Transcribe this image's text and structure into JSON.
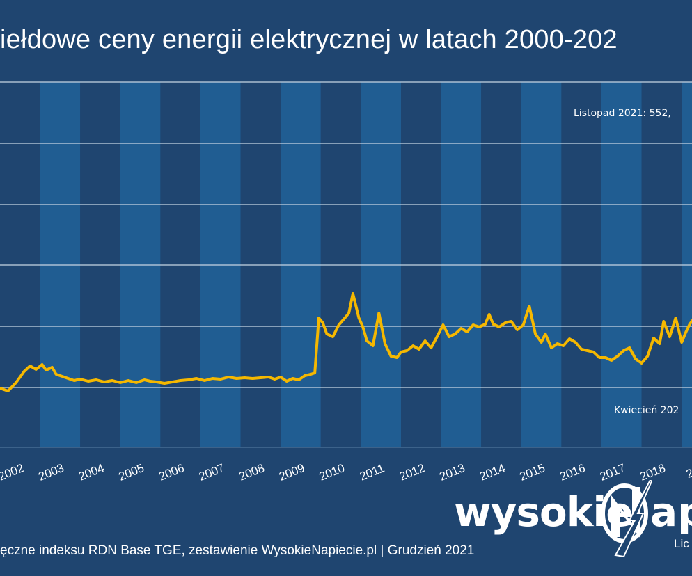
{
  "chart_data": {
    "type": "line",
    "title": "iełdowe ceny energii elektrycznej w latach 2000-202",
    "xlabel": "",
    "ylabel": "",
    "x_tick_labels": [
      "2002",
      "2003",
      "2004",
      "2005",
      "2006",
      "2007",
      "2008",
      "2009",
      "2010",
      "2011",
      "2012",
      "2013",
      "2014",
      "2015",
      "2016",
      "2017",
      "2018",
      "20"
    ],
    "grid": true,
    "line_color": "#f5b800",
    "annotations": {
      "max_label": "Listopad 2021: 552,",
      "min_label": "Kwiecień 202"
    },
    "series": [
      {
        "values": [
          [
            2001.0,
            0.04
          ],
          [
            2001.2,
            0.0
          ],
          [
            2001.4,
            0.12
          ],
          [
            2001.6,
            0.28
          ],
          [
            2001.75,
            0.36
          ],
          [
            2001.9,
            0.31
          ],
          [
            2002.05,
            0.38
          ],
          [
            2002.15,
            0.3
          ],
          [
            2002.3,
            0.34
          ],
          [
            2002.4,
            0.24
          ],
          [
            2002.55,
            0.21
          ],
          [
            2002.7,
            0.18
          ],
          [
            2002.85,
            0.15
          ],
          [
            2003.0,
            0.17
          ],
          [
            2003.2,
            0.14
          ],
          [
            2003.4,
            0.16
          ],
          [
            2003.6,
            0.13
          ],
          [
            2003.8,
            0.15
          ],
          [
            2004.0,
            0.12
          ],
          [
            2004.2,
            0.15
          ],
          [
            2004.4,
            0.12
          ],
          [
            2004.6,
            0.16
          ],
          [
            2004.75,
            0.14
          ],
          [
            2004.9,
            0.13
          ],
          [
            2005.1,
            0.11
          ],
          [
            2005.3,
            0.13
          ],
          [
            2005.5,
            0.15
          ],
          [
            2005.7,
            0.16
          ],
          [
            2005.9,
            0.18
          ],
          [
            2006.1,
            0.15
          ],
          [
            2006.3,
            0.18
          ],
          [
            2006.5,
            0.17
          ],
          [
            2006.7,
            0.2
          ],
          [
            2006.9,
            0.18
          ],
          [
            2007.1,
            0.19
          ],
          [
            2007.3,
            0.18
          ],
          [
            2007.5,
            0.19
          ],
          [
            2007.7,
            0.2
          ],
          [
            2007.85,
            0.17
          ],
          [
            2008.0,
            0.2
          ],
          [
            2008.15,
            0.14
          ],
          [
            2008.3,
            0.18
          ],
          [
            2008.45,
            0.16
          ],
          [
            2008.6,
            0.22
          ],
          [
            2008.75,
            0.24
          ],
          [
            2008.85,
            0.26
          ],
          [
            2008.95,
            1.05
          ],
          [
            2009.05,
            0.98
          ],
          [
            2009.15,
            0.82
          ],
          [
            2009.3,
            0.78
          ],
          [
            2009.45,
            0.95
          ],
          [
            2009.6,
            1.05
          ],
          [
            2009.7,
            1.12
          ],
          [
            2009.8,
            1.4
          ],
          [
            2009.95,
            1.05
          ],
          [
            2010.05,
            0.92
          ],
          [
            2010.15,
            0.72
          ],
          [
            2010.3,
            0.65
          ],
          [
            2010.45,
            1.12
          ],
          [
            2010.6,
            0.68
          ],
          [
            2010.75,
            0.5
          ],
          [
            2010.9,
            0.48
          ],
          [
            2011.0,
            0.56
          ],
          [
            2011.15,
            0.58
          ],
          [
            2011.3,
            0.65
          ],
          [
            2011.45,
            0.6
          ],
          [
            2011.6,
            0.72
          ],
          [
            2011.75,
            0.62
          ],
          [
            2011.9,
            0.78
          ],
          [
            2012.05,
            0.95
          ],
          [
            2012.2,
            0.78
          ],
          [
            2012.35,
            0.82
          ],
          [
            2012.5,
            0.9
          ],
          [
            2012.65,
            0.85
          ],
          [
            2012.8,
            0.95
          ],
          [
            2012.95,
            0.92
          ],
          [
            2013.1,
            0.96
          ],
          [
            2013.2,
            1.1
          ],
          [
            2013.3,
            0.96
          ],
          [
            2013.45,
            0.92
          ],
          [
            2013.6,
            0.98
          ],
          [
            2013.75,
            1.0
          ],
          [
            2013.9,
            0.88
          ],
          [
            2014.05,
            0.95
          ],
          [
            2014.2,
            1.22
          ],
          [
            2014.35,
            0.82
          ],
          [
            2014.5,
            0.7
          ],
          [
            2014.6,
            0.82
          ],
          [
            2014.75,
            0.62
          ],
          [
            2014.9,
            0.68
          ],
          [
            2015.05,
            0.65
          ],
          [
            2015.2,
            0.75
          ],
          [
            2015.35,
            0.7
          ],
          [
            2015.5,
            0.6
          ],
          [
            2015.65,
            0.58
          ],
          [
            2015.8,
            0.56
          ],
          [
            2015.95,
            0.48
          ],
          [
            2016.1,
            0.48
          ],
          [
            2016.25,
            0.44
          ],
          [
            2016.4,
            0.5
          ],
          [
            2016.55,
            0.58
          ],
          [
            2016.7,
            0.62
          ],
          [
            2016.85,
            0.46
          ],
          [
            2017.0,
            0.4
          ],
          [
            2017.15,
            0.5
          ],
          [
            2017.3,
            0.76
          ],
          [
            2017.45,
            0.68
          ],
          [
            2017.55,
            1.0
          ],
          [
            2017.7,
            0.78
          ],
          [
            2017.85,
            1.05
          ],
          [
            2018.0,
            0.7
          ],
          [
            2018.1,
            0.84
          ],
          [
            2018.2,
            0.96
          ],
          [
            2018.3,
            1.04
          ],
          [
            2018.45,
            0.86
          ],
          [
            2018.6,
            0.46
          ],
          [
            2018.75,
            0.4
          ],
          [
            2018.9,
            0.48
          ],
          [
            2019.05,
            0.56
          ],
          [
            2019.2,
            0.5
          ],
          [
            2019.35,
            0.62
          ],
          [
            2019.5,
            0.7
          ],
          [
            2019.65,
            0.78
          ],
          [
            2019.8,
            0.56
          ],
          [
            2019.95,
            0.52
          ],
          [
            2020.1,
            0.58
          ],
          [
            2020.2,
            0.62
          ],
          [
            2020.35,
            0.6
          ],
          [
            2020.5,
            0.7
          ],
          [
            2020.6,
            0.66
          ],
          [
            2020.7,
            0.46
          ],
          [
            2020.85,
            0.6
          ],
          [
            2021.0,
            0.82
          ],
          [
            2021.1,
            0.46
          ],
          [
            2021.2,
            0.4
          ],
          [
            2021.35,
            0.58
          ],
          [
            2021.45,
            0.62
          ],
          [
            2021.6,
            0.5
          ],
          [
            2021.7,
            0.48
          ],
          [
            2021.85,
            0.56
          ],
          [
            2022.0,
            1.06
          ],
          [
            2022.1,
            0.52
          ],
          [
            2022.25,
            0.42
          ],
          [
            2022.35,
            0.5
          ],
          [
            2022.5,
            0.6
          ],
          [
            2022.6,
            0.56
          ],
          [
            2022.75,
            0.58
          ],
          [
            2022.9,
            0.54
          ],
          [
            2023.05,
            0.48
          ],
          [
            2023.2,
            0.42
          ],
          [
            2023.3,
            0.5
          ],
          [
            2023.45,
            0.48
          ],
          [
            2023.6,
            0.52
          ],
          [
            2023.75,
            0.62
          ],
          [
            2023.85,
            0.6
          ],
          [
            2023.95,
            0.48
          ],
          [
            2024.05,
            0.58
          ],
          [
            2024.2,
            0.82
          ],
          [
            2024.35,
            0.94
          ],
          [
            2024.45,
            0.76
          ],
          [
            2024.55,
            1.18
          ],
          [
            2024.65,
            1.32
          ],
          [
            2024.8,
            1.42
          ],
          [
            2024.95,
            1.62
          ],
          [
            2025.1,
            1.44
          ],
          [
            2025.2,
            1.5
          ],
          [
            2025.3,
            1.2
          ],
          [
            2025.4,
            1.34
          ],
          [
            2025.5,
            1.22
          ],
          [
            2025.55,
            1.0
          ]
        ]
      }
    ]
  },
  "logo": {
    "text": "wysokie",
    "after": "ap"
  },
  "source": "ęczne indeksu RDN Base TGE, zestawienie WysokieNapiecie.pl   |  Grudzień 2021",
  "license": "Lic"
}
